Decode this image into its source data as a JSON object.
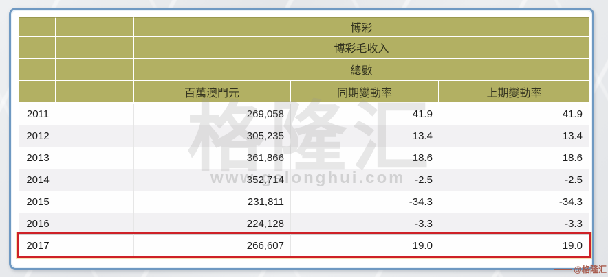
{
  "table": {
    "merged_headers": [
      "博彩",
      "博彩毛收入",
      "總數"
    ],
    "column_headers": [
      "百萬澳門元",
      "同期變動率",
      "上期變動率"
    ],
    "rows": [
      {
        "year": "2011",
        "momp": "269,058",
        "yoy": "41.9",
        "prev": "41.9",
        "highlighted": false
      },
      {
        "year": "2012",
        "momp": "305,235",
        "yoy": "13.4",
        "prev": "13.4",
        "highlighted": false
      },
      {
        "year": "2013",
        "momp": "361,866",
        "yoy": "18.6",
        "prev": "18.6",
        "highlighted": false
      },
      {
        "year": "2014",
        "momp": "352,714",
        "yoy": "-2.5",
        "prev": "-2.5",
        "highlighted": false
      },
      {
        "year": "2015",
        "momp": "231,811",
        "yoy": "-34.3",
        "prev": "-34.3",
        "highlighted": false
      },
      {
        "year": "2016",
        "momp": "224,128",
        "yoy": "-3.3",
        "prev": "-3.3",
        "highlighted": false
      },
      {
        "year": "2017",
        "momp": "266,607",
        "yoy": "19.0",
        "prev": "19.0",
        "highlighted": true
      }
    ]
  },
  "watermark": {
    "center_logo": "格隆汇",
    "center_url": "www.gelonghui.com",
    "corner_credit": "@格隆汇"
  },
  "colors": {
    "header_bg": "#b2b063",
    "frame_border": "#6f99c2",
    "highlight_border": "#ce2127",
    "zebra_row_bg": "#f2f1f3"
  },
  "chart_data": {
    "type": "table",
    "title": "博彩 / 博彩毛收入 / 總數",
    "categories": [
      2011,
      2012,
      2013,
      2014,
      2015,
      2016,
      2017
    ],
    "series": [
      {
        "name": "百萬澳門元",
        "values": [
          269058,
          305235,
          361866,
          352714,
          231811,
          224128,
          266607
        ]
      },
      {
        "name": "同期變動率",
        "values": [
          41.9,
          13.4,
          18.6,
          -2.5,
          -34.3,
          -3.3,
          19.0
        ]
      },
      {
        "name": "上期變動率",
        "values": [
          41.9,
          13.4,
          18.6,
          -2.5,
          -34.3,
          -3.3,
          19.0
        ]
      }
    ],
    "highlighted_category": 2017
  }
}
